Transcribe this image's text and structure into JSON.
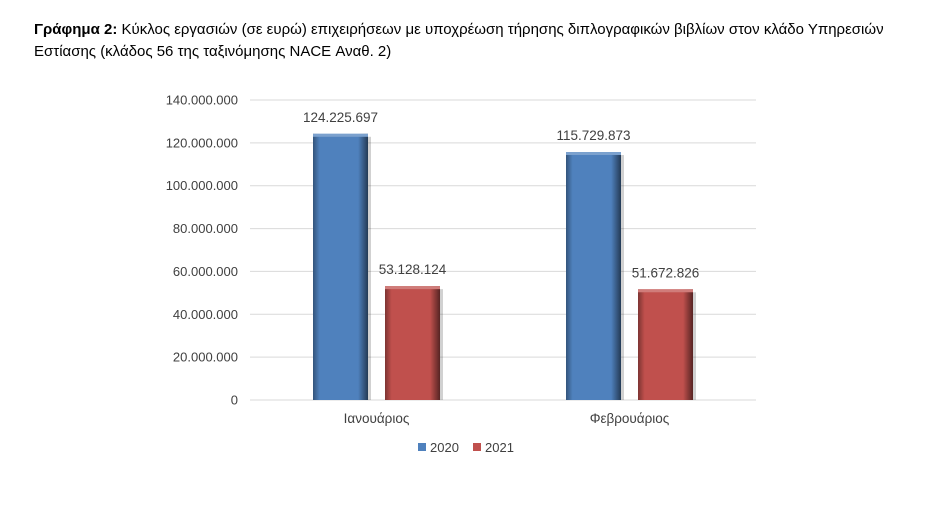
{
  "caption": {
    "prefix": "Γράφημα 2:",
    "text": " Κύκλος εργασιών (σε ευρώ) επιχειρήσεων με υποχρέωση τήρησης διπλογραφικών βιβλίων στον κλάδο Υπηρεσιών Εστίασης (κλάδος 56 της ταξινόμησης NACE Αναθ. 2)"
  },
  "chart_data": {
    "type": "bar",
    "categories": [
      "Ιανουάριος",
      "Φεβρουάριος"
    ],
    "series": [
      {
        "name": "2020",
        "values": [
          124225697,
          115729873
        ],
        "value_labels": [
          "124.225.697",
          "115.729.873"
        ],
        "color": "#4f81bd"
      },
      {
        "name": "2021",
        "values": [
          53128124,
          51672826
        ],
        "value_labels": [
          "53.128.124",
          "51.672.826"
        ],
        "color": "#c0504d"
      }
    ],
    "ylim": [
      0,
      140000000
    ],
    "y_ticks": [
      0,
      20000000,
      40000000,
      60000000,
      80000000,
      100000000,
      120000000,
      140000000
    ],
    "y_tick_labels": [
      "0",
      "20.000.000",
      "40.000.000",
      "60.000.000",
      "80.000.000",
      "100.000.000",
      "120.000.000",
      "140.000.000"
    ],
    "grid": true,
    "legend": "bottom",
    "title": "",
    "xlabel": "",
    "ylabel": ""
  }
}
